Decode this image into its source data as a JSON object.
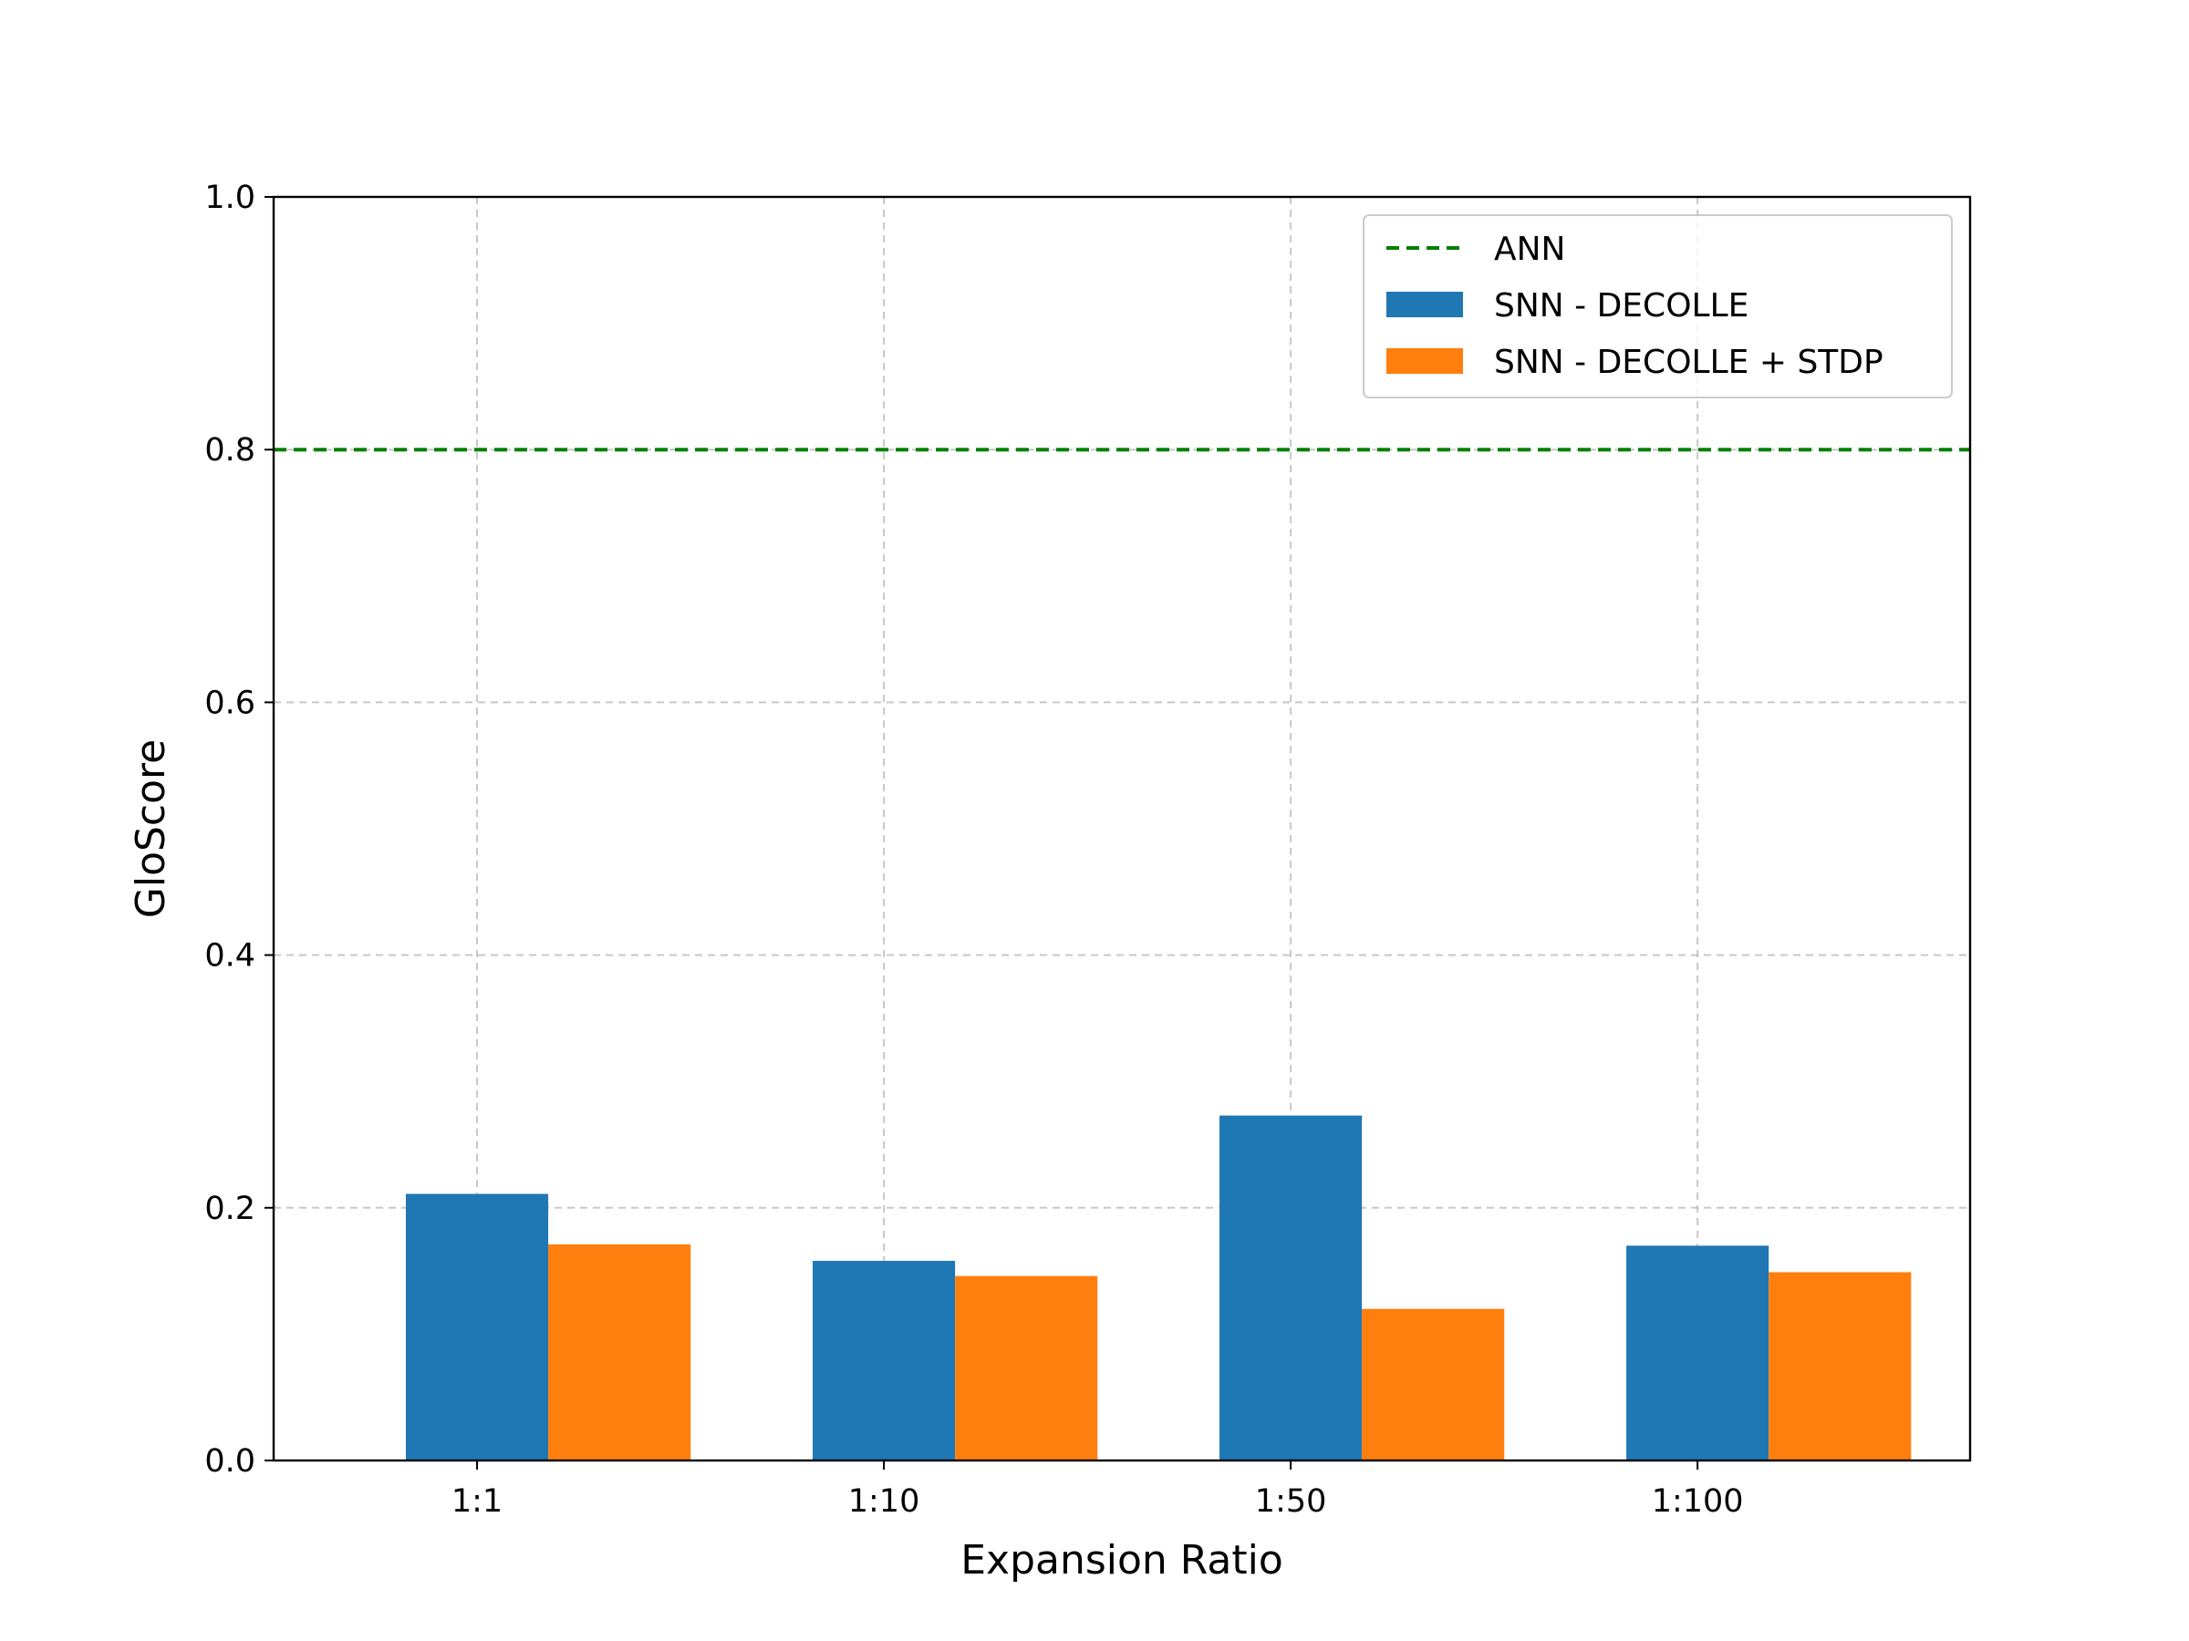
{
  "chart_data": {
    "type": "bar",
    "title": "",
    "xlabel": "Expansion Ratio",
    "ylabel": "GloScore",
    "categories": [
      "1:1",
      "1:10",
      "1:50",
      "1:100"
    ],
    "ylim": [
      0.0,
      1.0
    ],
    "yticks": [
      "0.0",
      "0.2",
      "0.4",
      "0.6",
      "0.8",
      "1.0"
    ],
    "grid": true,
    "legend_position": "top-right",
    "series": [
      {
        "name": "SNN - DECOLLE",
        "color": "#1f77b4",
        "values": [
          0.211,
          0.158,
          0.273,
          0.17
        ]
      },
      {
        "name": "SNN - DECOLLE + STDP",
        "color": "#ff7f0e",
        "values": [
          0.171,
          0.146,
          0.12,
          0.149
        ]
      }
    ],
    "reference_lines": [
      {
        "name": "ANN",
        "value": 0.8,
        "color": "#008000",
        "style": "dashed"
      }
    ]
  }
}
